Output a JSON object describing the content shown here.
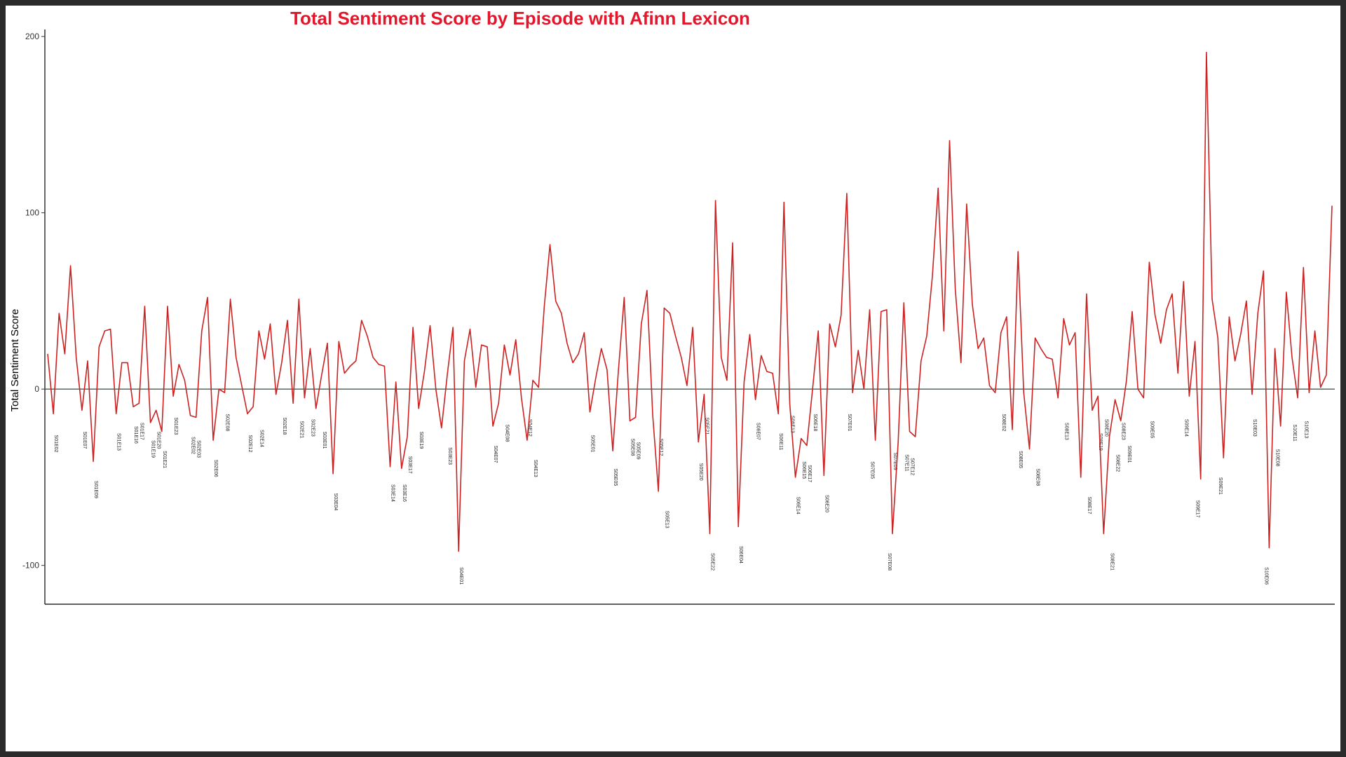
{
  "chart_data": {
    "type": "line",
    "title": "Total Sentiment Score by Episode with Afinn Lexicon",
    "xlabel": "",
    "ylabel": "Total Sentiment Score",
    "ylim": [
      -122,
      204
    ],
    "y_ticks": [
      -100,
      0,
      100,
      200
    ],
    "grid": false,
    "zero_line": true,
    "colors": {
      "line": "#cc2222",
      "zero_line": "#2f4f3f",
      "title": "#e3162b"
    },
    "values": [
      20,
      -14,
      43,
      20,
      70,
      18,
      -12,
      16,
      -41,
      24,
      33,
      34,
      -14,
      15,
      15,
      -10,
      -8,
      47,
      -19,
      -12,
      -24,
      47,
      -4,
      14,
      5,
      -15,
      -16,
      33,
      52,
      -29,
      0,
      -2,
      51,
      18,
      2,
      -14,
      -10,
      33,
      17,
      37,
      -3,
      15,
      39,
      -8,
      51,
      -5,
      23,
      -11,
      8,
      26,
      -48,
      27,
      9,
      13,
      16,
      39,
      30,
      18,
      14,
      13,
      -44,
      4,
      -45,
      -27,
      35,
      -11,
      10,
      36,
      0,
      -22,
      8,
      35,
      -92,
      16,
      34,
      1,
      25,
      24,
      -21,
      -8,
      25,
      8,
      28,
      -5,
      -29,
      5,
      1,
      47,
      82,
      50,
      43,
      26,
      15,
      20,
      32,
      -13,
      6,
      23,
      11,
      -35,
      11,
      52,
      -18,
      -16,
      37,
      56,
      -15,
      -58,
      46,
      43,
      30,
      18,
      2,
      35,
      -30,
      -3,
      -82,
      107,
      18,
      5,
      83,
      -78,
      4,
      31,
      -6,
      19,
      10,
      9,
      -14,
      106,
      -8,
      -50,
      -28,
      -32,
      0,
      33,
      -49,
      37,
      24,
      42,
      111,
      -2,
      22,
      0,
      45,
      -29,
      44,
      45,
      -82,
      -30,
      49,
      -24,
      -27,
      16,
      30,
      64,
      114,
      33,
      141,
      57,
      15,
      105,
      48,
      23,
      29,
      2,
      -2,
      32,
      41,
      -23,
      78,
      -2,
      -34,
      29,
      23,
      18,
      17,
      -5,
      40,
      25,
      32,
      -50,
      54,
      -12,
      -4,
      -82,
      -27,
      -6,
      -18,
      5,
      44,
      0,
      -5,
      72,
      42,
      26,
      45,
      54,
      9,
      61,
      -4,
      27,
      -51,
      191,
      51,
      29,
      -39,
      41,
      16,
      31,
      50,
      -3,
      43,
      67,
      -90,
      23,
      -21,
      55,
      18,
      -5,
      69,
      -2,
      33,
      1,
      8,
      104
    ],
    "episode_labels": [
      {
        "index": 1,
        "label": "S01E02",
        "y": -26
      },
      {
        "index": 6,
        "label": "S01E07",
        "y": -24
      },
      {
        "index": 8,
        "label": "S01E09",
        "y": -52
      },
      {
        "index": 12,
        "label": "S01E13",
        "y": -25
      },
      {
        "index": 15,
        "label": "S01E16",
        "y": -21
      },
      {
        "index": 16,
        "label": "S01E17",
        "y": -19
      },
      {
        "index": 18,
        "label": "S01E19",
        "y": -29
      },
      {
        "index": 19,
        "label": "S01E20",
        "y": -24
      },
      {
        "index": 20,
        "label": "S01E21",
        "y": -35
      },
      {
        "index": 22,
        "label": "S01E23",
        "y": -16
      },
      {
        "index": 25,
        "label": "S02E02",
        "y": -27
      },
      {
        "index": 26,
        "label": "S02E03",
        "y": -29
      },
      {
        "index": 29,
        "label": "S02E06",
        "y": -40
      },
      {
        "index": 31,
        "label": "S02E08",
        "y": -14
      },
      {
        "index": 35,
        "label": "S02E12",
        "y": -26
      },
      {
        "index": 37,
        "label": "S02E14",
        "y": -23
      },
      {
        "index": 41,
        "label": "S02E18",
        "y": -16
      },
      {
        "index": 44,
        "label": "S02E21",
        "y": -18
      },
      {
        "index": 46,
        "label": "S02E23",
        "y": -17
      },
      {
        "index": 48,
        "label": "S03E01",
        "y": -24
      },
      {
        "index": 50,
        "label": "S03E04",
        "y": -59
      },
      {
        "index": 60,
        "label": "S03E14",
        "y": -54
      },
      {
        "index": 62,
        "label": "S03E16",
        "y": -54
      },
      {
        "index": 63,
        "label": "S03E17",
        "y": -38
      },
      {
        "index": 65,
        "label": "S03E19",
        "y": -24
      },
      {
        "index": 70,
        "label": "S03E23",
        "y": -33
      },
      {
        "index": 72,
        "label": "S04E01",
        "y": -101
      },
      {
        "index": 78,
        "label": "S04E07",
        "y": -32
      },
      {
        "index": 80,
        "label": "S04E08",
        "y": -20
      },
      {
        "index": 84,
        "label": "S04E12",
        "y": -17
      },
      {
        "index": 85,
        "label": "S04E13",
        "y": -40
      },
      {
        "index": 95,
        "label": "S05E01",
        "y": -26
      },
      {
        "index": 99,
        "label": "S05E05",
        "y": -45
      },
      {
        "index": 102,
        "label": "S05E08",
        "y": -28
      },
      {
        "index": 103,
        "label": "S05E09",
        "y": -30
      },
      {
        "index": 107,
        "label": "S05E12",
        "y": -28
      },
      {
        "index": 108,
        "label": "S05E13",
        "y": -69
      },
      {
        "index": 114,
        "label": "S05E20",
        "y": -42
      },
      {
        "index": 115,
        "label": "S05E21",
        "y": -16
      },
      {
        "index": 116,
        "label": "S05E22",
        "y": -93
      },
      {
        "index": 121,
        "label": "S06E04",
        "y": -89
      },
      {
        "index": 124,
        "label": "S06E07",
        "y": -19
      },
      {
        "index": 128,
        "label": "S06E11",
        "y": -25
      },
      {
        "index": 130,
        "label": "S06E13",
        "y": -15
      },
      {
        "index": 131,
        "label": "S06E14",
        "y": -61
      },
      {
        "index": 132,
        "label": "S06E15",
        "y": -41
      },
      {
        "index": 133,
        "label": "S06E17",
        "y": -43
      },
      {
        "index": 134,
        "label": "S06E18",
        "y": -14
      },
      {
        "index": 136,
        "label": "S06E20",
        "y": -60
      },
      {
        "index": 140,
        "label": "S07E01",
        "y": -14
      },
      {
        "index": 144,
        "label": "S07E05",
        "y": -41
      },
      {
        "index": 147,
        "label": "S07E08",
        "y": -93
      },
      {
        "index": 148,
        "label": "S07E09",
        "y": -36
      },
      {
        "index": 150,
        "label": "S07E11",
        "y": -37
      },
      {
        "index": 151,
        "label": "S07E12",
        "y": -39
      },
      {
        "index": 167,
        "label": "S08E02",
        "y": -14
      },
      {
        "index": 170,
        "label": "S08E05",
        "y": -35
      },
      {
        "index": 173,
        "label": "S08E08",
        "y": -45
      },
      {
        "index": 178,
        "label": "S08E13",
        "y": -19
      },
      {
        "index": 182,
        "label": "S08E17",
        "y": -61
      },
      {
        "index": 184,
        "label": "S08E19",
        "y": -25
      },
      {
        "index": 185,
        "label": "S08E20",
        "y": -17
      },
      {
        "index": 186,
        "label": "S08E21",
        "y": -93
      },
      {
        "index": 187,
        "label": "S08E22",
        "y": -37
      },
      {
        "index": 188,
        "label": "S08E23",
        "y": -19
      },
      {
        "index": 189,
        "label": "S09E01",
        "y": -32
      },
      {
        "index": 193,
        "label": "S09E05",
        "y": -18
      },
      {
        "index": 199,
        "label": "S09E14",
        "y": -17
      },
      {
        "index": 201,
        "label": "S09E17",
        "y": -63
      },
      {
        "index": 205,
        "label": "S09E21",
        "y": -50
      },
      {
        "index": 211,
        "label": "S10E03",
        "y": -17
      },
      {
        "index": 213,
        "label": "S10E06",
        "y": -101
      },
      {
        "index": 215,
        "label": "S10E08",
        "y": -34
      },
      {
        "index": 218,
        "label": "S10E11",
        "y": -20
      },
      {
        "index": 220,
        "label": "S10E13",
        "y": -18
      }
    ]
  }
}
